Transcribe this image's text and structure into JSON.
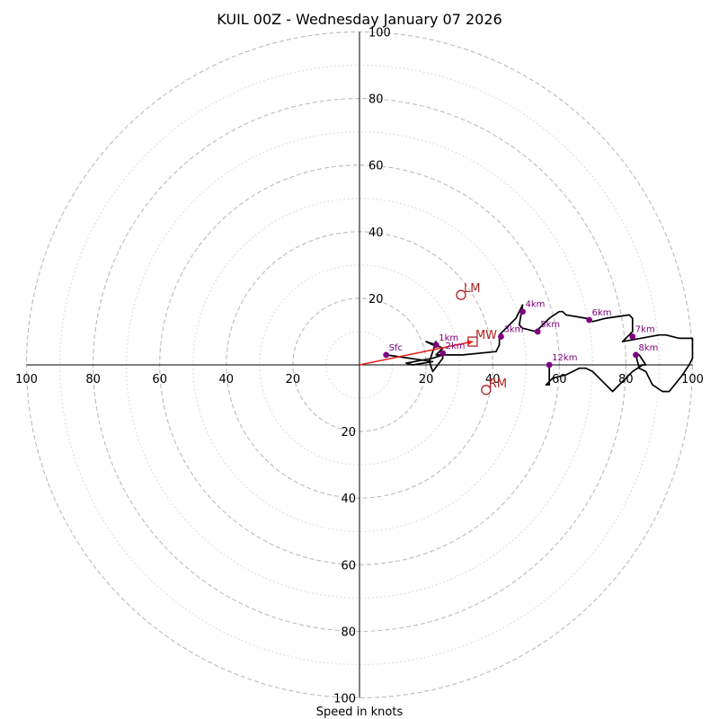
{
  "chart_data": {
    "type": "hodograph",
    "title": "KUIL 00Z - Wednesday January 07 2026",
    "xlabel": "Speed in knots",
    "rings": [
      20,
      40,
      60,
      80,
      100
    ],
    "dotted_rings": [
      10,
      30,
      50,
      70,
      90
    ],
    "axis_range": [
      -100,
      100
    ],
    "tick_labels": {
      "left": [
        "100",
        "80",
        "60",
        "40",
        "20"
      ],
      "right": [
        "20",
        "40",
        "60",
        "80",
        "100"
      ],
      "top": [
        "20",
        "40",
        "60",
        "80",
        "100"
      ],
      "bottom": [
        "20",
        "40",
        "60",
        "80",
        "100"
      ]
    },
    "trace": [
      [
        8,
        3
      ],
      [
        22,
        1
      ],
      [
        16,
        0
      ],
      [
        14,
        0.5
      ],
      [
        22,
        2
      ],
      [
        25,
        3
      ],
      [
        25,
        2
      ],
      [
        22,
        -2
      ],
      [
        21,
        1
      ],
      [
        23,
        7
      ],
      [
        22,
        6
      ],
      [
        20,
        7
      ],
      [
        23,
        6
      ],
      [
        25,
        5
      ],
      [
        23,
        3
      ],
      [
        31,
        3
      ],
      [
        41,
        4
      ],
      [
        42,
        6
      ],
      [
        42,
        9
      ],
      [
        47,
        14
      ],
      [
        48,
        16
      ],
      [
        49,
        18
      ],
      [
        48,
        12
      ],
      [
        49,
        11
      ],
      [
        53,
        10
      ],
      [
        57,
        14
      ],
      [
        60,
        16
      ],
      [
        61,
        16
      ],
      [
        62,
        15
      ],
      [
        68,
        14
      ],
      [
        70,
        13
      ],
      [
        74,
        14
      ],
      [
        81,
        15
      ],
      [
        82,
        14
      ],
      [
        82,
        10
      ],
      [
        81,
        9
      ],
      [
        80,
        8
      ],
      [
        79,
        7
      ],
      [
        90,
        9
      ],
      [
        92,
        9
      ],
      [
        96,
        8
      ],
      [
        99,
        8
      ],
      [
        100,
        8
      ],
      [
        100,
        5
      ],
      [
        100,
        2
      ],
      [
        99,
        0
      ],
      [
        97,
        -3
      ],
      [
        93,
        -8
      ],
      [
        92,
        -8
      ],
      [
        91,
        -8
      ],
      [
        88,
        -6
      ],
      [
        86,
        -2
      ],
      [
        84,
        -1
      ],
      [
        83,
        3
      ],
      [
        84,
        3
      ],
      [
        86,
        0
      ],
      [
        85,
        0
      ],
      [
        82,
        -2
      ],
      [
        79,
        -5
      ],
      [
        77,
        -7
      ],
      [
        76,
        -8
      ],
      [
        74,
        -6
      ],
      [
        72,
        -4
      ],
      [
        70,
        -2
      ],
      [
        68,
        -1
      ],
      [
        66,
        -1
      ],
      [
        62,
        -3
      ],
      [
        58,
        -4
      ],
      [
        56,
        -6
      ],
      [
        57,
        -6
      ],
      [
        57,
        -1
      ],
      [
        57,
        0
      ]
    ],
    "height_markers": [
      {
        "label": "Sfc",
        "x": 8,
        "y": 3
      },
      {
        "label": "1km",
        "x": 23,
        "y": 6
      },
      {
        "label": "2km",
        "x": 25,
        "y": 3.5
      },
      {
        "label": "3km",
        "x": 42.5,
        "y": 8.5
      },
      {
        "label": "4km",
        "x": 49,
        "y": 16
      },
      {
        "label": "5km",
        "x": 53.5,
        "y": 10
      },
      {
        "label": "6km",
        "x": 69,
        "y": 13.5
      },
      {
        "label": "7km",
        "x": 82,
        "y": 8.5
      },
      {
        "label": "8km",
        "x": 83,
        "y": 3
      },
      {
        "label": "12km",
        "x": 57,
        "y": 0
      }
    ],
    "motion_points": [
      {
        "label": "LM",
        "x": 30.5,
        "y": 21,
        "shape": "circle"
      },
      {
        "label": "RM",
        "x": 38,
        "y": -7.5,
        "shape": "circle"
      },
      {
        "label": "MW",
        "x": 34,
        "y": 7,
        "shape": "square"
      }
    ],
    "shear_vector": {
      "from": [
        0,
        0
      ],
      "to": [
        34,
        7
      ]
    },
    "colors": {
      "trace": "#000000",
      "markers": "#800080",
      "motion": "#b22222",
      "shear": "#e8231b",
      "grid": "#bbbbbb",
      "dotted_grid": "#d4d4d4"
    }
  }
}
